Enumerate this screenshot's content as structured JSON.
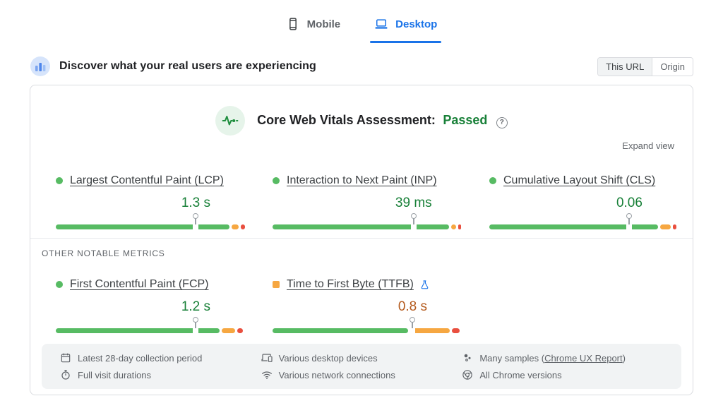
{
  "device_tabs": {
    "tabs": [
      {
        "label": "Mobile",
        "icon": "phone-icon",
        "selected": false
      },
      {
        "label": "Desktop",
        "icon": "laptop-icon",
        "selected": true
      }
    ]
  },
  "field_section": {
    "icon": "bar-chart-icon",
    "title": "Discover what your real users are experiencing",
    "scope_toggle": [
      {
        "label": "This URL",
        "selected": true
      },
      {
        "label": "Origin",
        "selected": false
      }
    ]
  },
  "assessment": {
    "icon": "pulse-icon",
    "title": "Core Web Vitals Assessment:",
    "status": "Passed",
    "help_glyph": "?",
    "expand_label": "Expand view"
  },
  "colors": {
    "good_bar": "#57bb63",
    "ni_bar": "#f6a741",
    "poor_bar": "#e94f3f",
    "good_text": "#188038",
    "ni_text": "#b45a1d",
    "accent_blue": "#1a73e8"
  },
  "core_web_vitals": [
    {
      "label": "Largest Contentful Paint (LCP)",
      "value": "1.3 s",
      "rating": "good",
      "experimental": false,
      "marker_pct": 73.5,
      "distribution": {
        "good_pct": 91,
        "needs_improvement_pct": 4,
        "poor_pct": 2
      }
    },
    {
      "label": "Interaction to Next Paint (INP)",
      "value": "39 ms",
      "rating": "good",
      "experimental": false,
      "marker_pct": 74,
      "distribution": {
        "good_pct": 92.5,
        "needs_improvement_pct": 2.8,
        "poor_pct": 1.5
      }
    },
    {
      "label": "Cumulative Layout Shift (CLS)",
      "value": "0.06",
      "rating": "good",
      "experimental": false,
      "marker_pct": 73.5,
      "distribution": {
        "good_pct": 88.5,
        "needs_improvement_pct": 5.5,
        "poor_pct": 2
      }
    }
  ],
  "other_metrics_heading": "OTHER NOTABLE METRICS",
  "other_metrics": [
    {
      "label": "First Contentful Paint (FCP)",
      "value": "1.2 s",
      "rating": "good",
      "experimental": false,
      "marker_pct": 73.5,
      "distribution": {
        "good_pct": 86,
        "needs_improvement_pct": 7,
        "poor_pct": 3
      }
    },
    {
      "label": "Time to First Byte (TTFB)",
      "value": "0.8 s",
      "rating": "needs-improvement",
      "experimental": true,
      "marker_pct": 73.5,
      "distribution": {
        "good_pct": 71,
        "needs_improvement_pct": 21,
        "poor_pct": 4
      }
    }
  ],
  "data_notes": [
    {
      "icon": "calendar-icon",
      "text": "Latest 28-day collection period"
    },
    {
      "icon": "stopwatch-icon",
      "text": "Full visit durations"
    },
    {
      "icon": "devices-icon",
      "text": "Various desktop devices"
    },
    {
      "icon": "wifi-icon",
      "text": "Various network connections"
    },
    {
      "icon": "samples-icon",
      "text_prefix": "Many samples (",
      "link_text": "Chrome UX Report",
      "text_suffix": ")"
    },
    {
      "icon": "chrome-icon",
      "text": "All Chrome versions"
    }
  ]
}
